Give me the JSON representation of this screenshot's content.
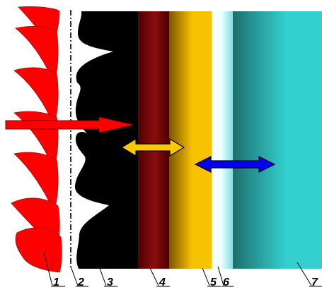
{
  "colors": {
    "flame": "#ff0000",
    "deposit": "#000000",
    "layer4_dark": "#4a0000",
    "layer4_mid": "#8a0d0d",
    "layer5_dark": "#7a5200",
    "layer5_bright": "#f7c300",
    "layer6_light": "#f2ffff",
    "layer6_cyan": "#7fe0e0",
    "layer7_dark": "#1f6d6d",
    "layer7_bright": "#34cfcf",
    "arrow_red": "#ff0000",
    "arrow_yellow": "#ffc700",
    "arrow_blue": "#0000ee",
    "divider": "#000000"
  },
  "labels": [
    {
      "id": "1",
      "text": "1"
    },
    {
      "id": "2",
      "text": "2"
    },
    {
      "id": "3",
      "text": "3"
    },
    {
      "id": "4",
      "text": "4"
    },
    {
      "id": "5",
      "text": "5"
    },
    {
      "id": "6",
      "text": "6"
    },
    {
      "id": "7",
      "text": "7"
    }
  ]
}
